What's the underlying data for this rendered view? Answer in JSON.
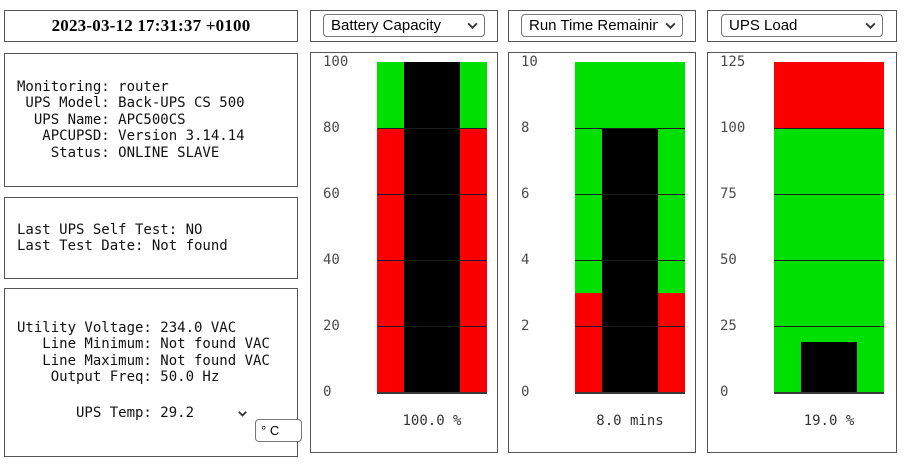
{
  "timestamp": "2023-03-12 17:31:37 +0100",
  "colors": {
    "green": "#00e000",
    "red": "#fa0000",
    "bar_black": "#000000"
  },
  "panels": {
    "status": {
      "lines": [
        "Monitoring: router",
        " UPS Model: Back-UPS CS 500",
        "  UPS Name: APC500CS",
        "   APCUPSD: Version 3.14.14",
        "    Status: ONLINE SLAVE"
      ]
    },
    "selftest": {
      "lines": [
        "Last UPS Self Test: NO",
        "Last Test Date: Not found"
      ]
    },
    "voltage": {
      "lines": [
        "Utility Voltage: 234.0 VAC",
        "   Line Minimum: Not found VAC",
        "   Line Maximum: Not found VAC",
        "    Output Freq: 50.0 Hz"
      ],
      "temp_label": "       UPS Temp: 29.2 ",
      "temp_unit": "° C"
    }
  },
  "chart_data": [
    {
      "type": "bar",
      "selector": "Battery Capacity",
      "ylim": [
        0,
        100
      ],
      "ticks": [
        0,
        20,
        40,
        60,
        80,
        100
      ],
      "zones": [
        {
          "from": 0,
          "to": 80,
          "color": "red"
        },
        {
          "from": 80,
          "to": 100,
          "color": "green"
        }
      ],
      "value": 100,
      "value_label": "100.0 %"
    },
    {
      "type": "bar",
      "selector": "Run Time Remaining",
      "ylim": [
        0,
        10
      ],
      "ticks": [
        0,
        2,
        4,
        6,
        8,
        10
      ],
      "zones": [
        {
          "from": 0,
          "to": 3,
          "color": "red"
        },
        {
          "from": 3,
          "to": 10,
          "color": "green"
        }
      ],
      "value": 8,
      "value_label": "8.0 mins"
    },
    {
      "type": "bar",
      "selector": "UPS Load",
      "ylim": [
        0,
        125
      ],
      "ticks": [
        0,
        25,
        50,
        75,
        100,
        125
      ],
      "zones": [
        {
          "from": 0,
          "to": 100,
          "color": "green"
        },
        {
          "from": 100,
          "to": 125,
          "color": "red"
        }
      ],
      "value": 19,
      "value_label": "19.0 %"
    }
  ]
}
